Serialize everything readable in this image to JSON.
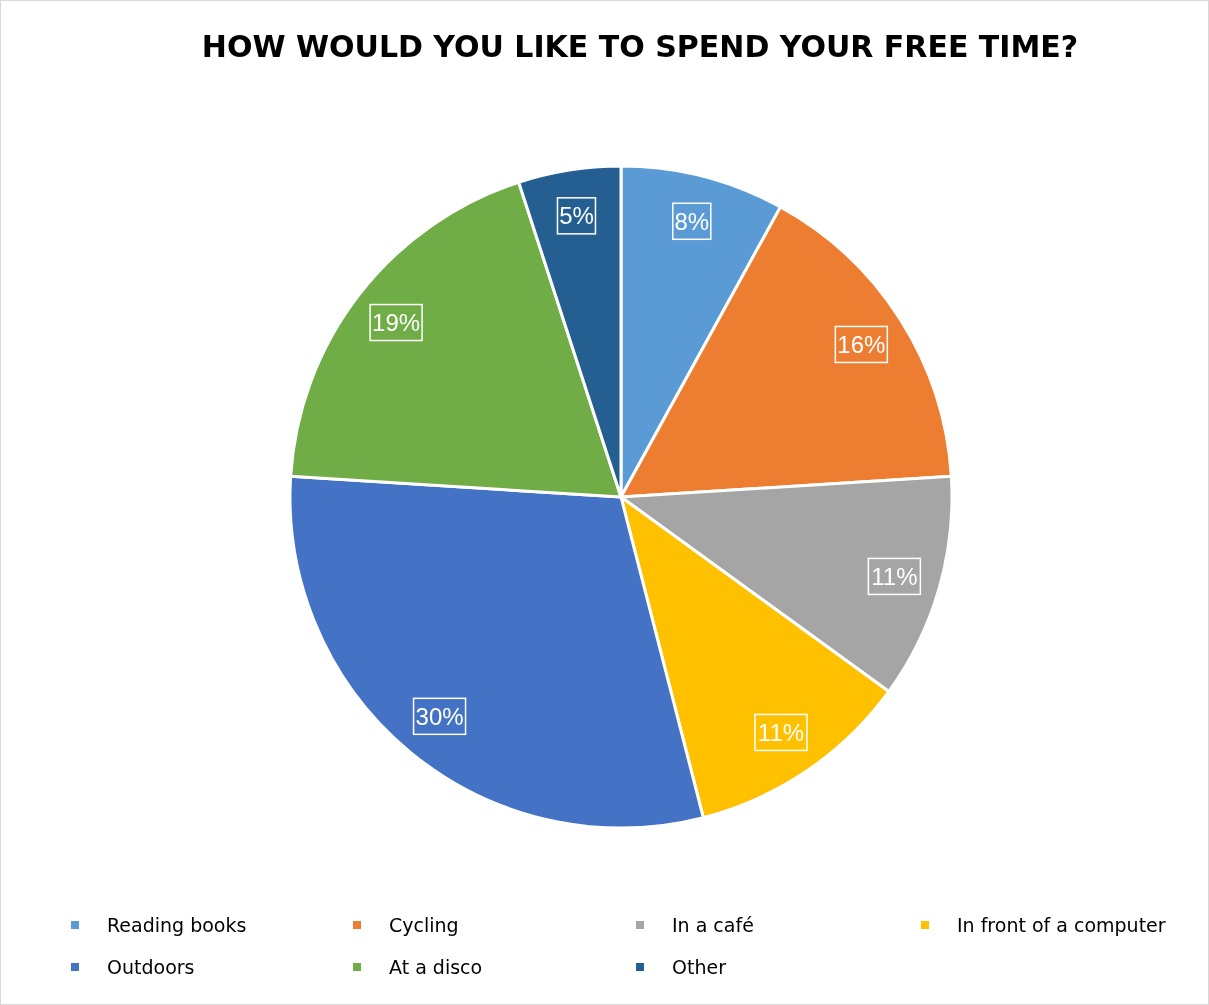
{
  "chart_data": {
    "type": "pie",
    "title": "HOW WOULD YOU LIKE TO SPEND YOUR FREE TIME?",
    "categories": [
      "Reading books",
      "Cycling",
      "In a café",
      "In front of a computer",
      "Outdoors",
      "At a disco",
      "Other"
    ],
    "values": [
      8,
      16,
      11,
      11,
      30,
      19,
      5
    ],
    "colors": [
      "#5b9bd5",
      "#ed7d31",
      "#a5a5a5",
      "#ffc000",
      "#4472c4",
      "#70ad47",
      "#255e91"
    ],
    "value_labels": [
      "8%",
      "16%",
      "11%",
      "11%",
      "30%",
      "19%",
      "5%"
    ],
    "legend": "bottom"
  }
}
